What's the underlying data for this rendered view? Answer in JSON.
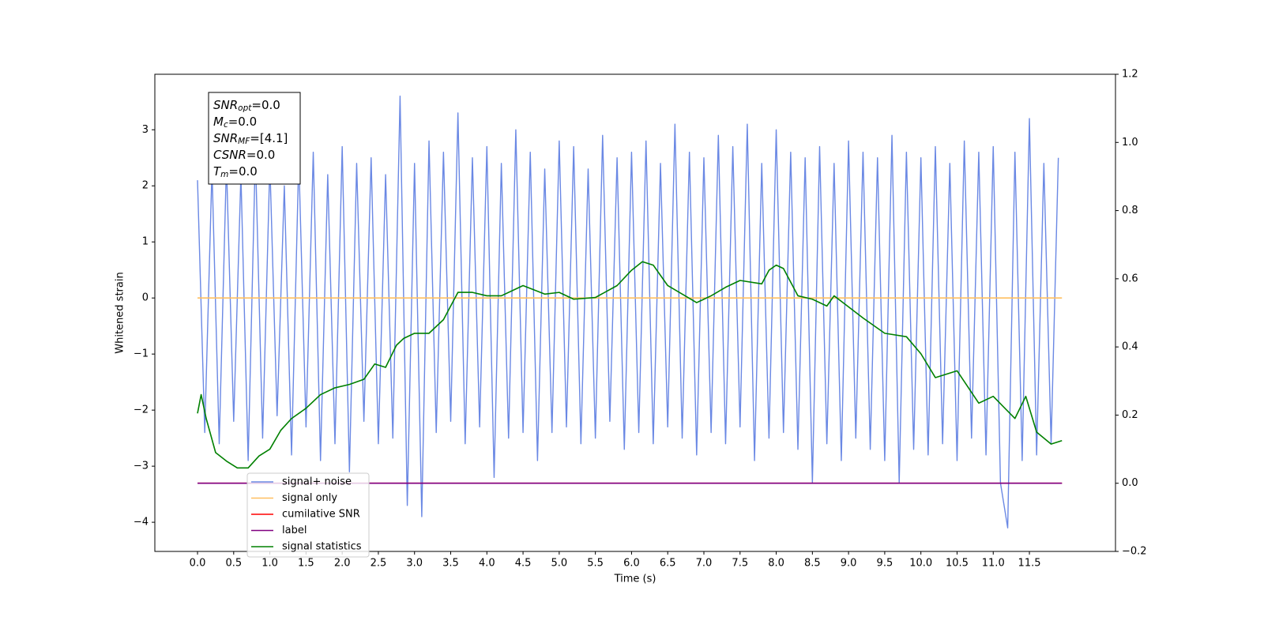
{
  "chart_data": {
    "type": "line",
    "xlabel": "Time (s)",
    "ylabel": "Whitened strain",
    "xlim": [
      -0.59,
      12.69
    ],
    "ylim": [
      -4.52,
      3.99
    ],
    "y2lim": [
      -0.2,
      1.2
    ],
    "xticks": [
      {
        "value": 0,
        "label": "0.0"
      },
      0.5,
      {
        "value": 1,
        "label": "1.0"
      },
      1.5,
      {
        "value": 2,
        "label": "2.0"
      },
      2.5,
      {
        "value": 3,
        "label": "3.0"
      },
      3.5,
      {
        "value": 4,
        "label": "4.0"
      },
      4.5,
      {
        "value": 5,
        "label": "5.0"
      },
      5.5,
      {
        "value": 6,
        "label": "6.0"
      },
      6.5,
      {
        "value": 7,
        "label": "7.0"
      },
      7.5,
      {
        "value": 8,
        "label": "8.0"
      },
      8.5,
      {
        "value": 9,
        "label": "9.0"
      },
      9.5,
      {
        "value": 10,
        "label": "10.0"
      },
      10.5,
      {
        "value": 11,
        "label": "11.0"
      },
      11.5
    ],
    "yticks": [
      {
        "value": -4,
        "label": "−4"
      },
      {
        "value": -3,
        "label": "−3"
      },
      {
        "value": -2,
        "label": "−2"
      },
      {
        "value": -1,
        "label": "−1"
      },
      0,
      1,
      2,
      3
    ],
    "y2ticks": [
      {
        "value": -0.2,
        "label": "−0.2"
      },
      {
        "value": 0,
        "label": "0.0"
      },
      0.2,
      0.4,
      0.6,
      0.8,
      {
        "value": 1,
        "label": "1.0"
      },
      1.2
    ],
    "legend": "lower left",
    "annotation": {
      "lines": [
        {
          "base": "SNR",
          "sub": "opt",
          "rest": "=0.0"
        },
        {
          "base": "M",
          "sub": "c",
          "rest": "=0.0"
        },
        {
          "base": "SNR",
          "sub": "MF",
          "rest": "=[4.1]"
        },
        {
          "base": "CSNR",
          "sub": "",
          "rest": "=0.0"
        },
        {
          "base": "T",
          "sub": "m",
          "rest": "=0.0"
        }
      ]
    },
    "series": [
      {
        "name": "signal+ noise",
        "color": "#6a88e4",
        "x": [
          0.0,
          0.1,
          0.2,
          0.3,
          0.4,
          0.5,
          0.6,
          0.7,
          0.8,
          0.9,
          1.0,
          1.1,
          1.2,
          1.3,
          1.4,
          1.5,
          1.6,
          1.7,
          1.8,
          1.9,
          2.0,
          2.1,
          2.2,
          2.3,
          2.4,
          2.5,
          2.6,
          2.7,
          2.8,
          2.9,
          3.0,
          3.1,
          3.2,
          3.3,
          3.4,
          3.5,
          3.6,
          3.7,
          3.8,
          3.9,
          4.0,
          4.1,
          4.2,
          4.3,
          4.4,
          4.5,
          4.6,
          4.7,
          4.8,
          4.9,
          5.0,
          5.1,
          5.2,
          5.3,
          5.4,
          5.5,
          5.6,
          5.7,
          5.8,
          5.9,
          6.0,
          6.1,
          6.2,
          6.3,
          6.4,
          6.5,
          6.6,
          6.7,
          6.8,
          6.9,
          7.0,
          7.1,
          7.2,
          7.3,
          7.4,
          7.5,
          7.6,
          7.7,
          7.8,
          7.9,
          8.0,
          8.1,
          8.2,
          8.3,
          8.4,
          8.5,
          8.6,
          8.7,
          8.8,
          8.9,
          9.0,
          9.1,
          9.2,
          9.3,
          9.4,
          9.5,
          9.6,
          9.7,
          9.8,
          9.9,
          10.0,
          10.1,
          10.2,
          10.3,
          10.4,
          10.5,
          10.6,
          10.7,
          10.8,
          10.9,
          11.0,
          11.1,
          11.2,
          11.3,
          11.4,
          11.5,
          11.6,
          11.7,
          11.8,
          11.9
        ],
        "values": [
          2.1,
          -2.4,
          2.3,
          -2.6,
          2.4,
          -2.2,
          2.2,
          -2.9,
          2.6,
          -2.5,
          2.4,
          -2.1,
          2.0,
          -2.8,
          2.5,
          -2.3,
          2.6,
          -2.9,
          2.2,
          -2.6,
          2.7,
          -3.1,
          2.4,
          -2.2,
          2.5,
          -2.6,
          2.2,
          -2.5,
          3.6,
          -3.7,
          2.4,
          -3.9,
          2.8,
          -2.4,
          2.6,
          -2.2,
          3.3,
          -2.6,
          2.5,
          -2.3,
          2.7,
          -3.2,
          2.4,
          -2.5,
          3.0,
          -2.4,
          2.6,
          -2.9,
          2.3,
          -2.4,
          2.8,
          -2.3,
          2.7,
          -2.6,
          2.3,
          -2.5,
          2.9,
          -2.2,
          2.5,
          -2.7,
          2.6,
          -2.4,
          2.8,
          -2.6,
          2.4,
          -2.3,
          3.1,
          -2.5,
          2.6,
          -2.8,
          2.5,
          -2.4,
          2.9,
          -2.6,
          2.7,
          -2.3,
          3.1,
          -2.9,
          2.4,
          -2.5,
          3.0,
          -2.4,
          2.6,
          -2.7,
          2.5,
          -3.3,
          2.7,
          -2.6,
          2.4,
          -2.9,
          2.8,
          -2.5,
          2.6,
          -2.7,
          2.5,
          -2.9,
          2.9,
          -3.3,
          2.6,
          -2.7,
          2.5,
          -2.8,
          2.7,
          -2.6,
          2.4,
          -2.9,
          2.8,
          -2.5,
          2.6,
          -2.8,
          2.7,
          -3.3,
          -4.1,
          2.6,
          -2.9,
          3.2,
          -2.8,
          2.4,
          -2.6,
          2.5
        ]
      },
      {
        "name": "signal only",
        "color": "#ffbf60",
        "x": [
          0,
          11.95
        ],
        "values": [
          0,
          0
        ]
      },
      {
        "name": "cumilative SNR",
        "color": "#ff0000",
        "axis": "y2",
        "x": [
          0,
          11.95
        ],
        "values": [
          0,
          0
        ]
      },
      {
        "name": "label",
        "color": "#800080",
        "axis": "y2",
        "x": [
          0,
          11.95
        ],
        "values": [
          0,
          0
        ]
      },
      {
        "name": "signal statistics",
        "color": "#008000",
        "axis": "y2",
        "x": [
          0.0,
          0.05,
          0.12,
          0.25,
          0.4,
          0.55,
          0.7,
          0.85,
          1.0,
          1.15,
          1.3,
          1.5,
          1.7,
          1.9,
          2.1,
          2.3,
          2.45,
          2.6,
          2.75,
          2.85,
          3.0,
          3.2,
          3.4,
          3.6,
          3.8,
          4.0,
          4.2,
          4.5,
          4.8,
          5.0,
          5.2,
          5.5,
          5.8,
          6.0,
          6.15,
          6.3,
          6.5,
          6.9,
          7.1,
          7.3,
          7.5,
          7.8,
          7.9,
          8.0,
          8.1,
          8.3,
          8.5,
          8.7,
          8.8,
          9.2,
          9.5,
          9.8,
          10.0,
          10.2,
          10.5,
          10.8,
          11.0,
          11.3,
          11.45,
          11.6,
          11.8,
          11.95
        ],
        "values": [
          0.205,
          0.26,
          0.19,
          0.09,
          0.065,
          0.045,
          0.045,
          0.08,
          0.1,
          0.155,
          0.19,
          0.22,
          0.26,
          0.28,
          0.29,
          0.305,
          0.35,
          0.34,
          0.405,
          0.425,
          0.44,
          0.44,
          0.48,
          0.56,
          0.56,
          0.55,
          0.55,
          0.58,
          0.555,
          0.56,
          0.54,
          0.545,
          0.58,
          0.625,
          0.65,
          0.64,
          0.58,
          0.53,
          0.55,
          0.575,
          0.595,
          0.585,
          0.625,
          0.64,
          0.63,
          0.55,
          0.54,
          0.52,
          0.55,
          0.485,
          0.44,
          0.43,
          0.38,
          0.31,
          0.33,
          0.235,
          0.255,
          0.19,
          0.255,
          0.15,
          0.115,
          0.125
        ]
      }
    ]
  }
}
